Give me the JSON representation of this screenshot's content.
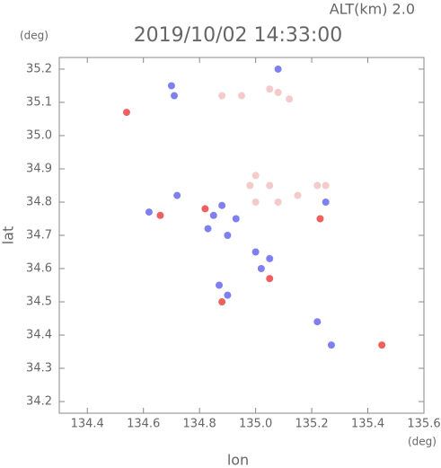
{
  "chart_data": {
    "type": "scatter",
    "title": "2019/10/02 14:33:00",
    "subtitle": "ALT(km)  2.0",
    "x_label": "lon",
    "y_label": "lat",
    "x_unit": "(deg)",
    "y_unit": "(deg)",
    "xlim": [
      134.3,
      135.6
    ],
    "xticks": [
      134.4,
      134.6,
      134.8,
      {
        "value": 135,
        "label": "135.0"
      },
      135.2,
      135.4,
      135.6
    ],
    "ylim": [
      34.165,
      35.235
    ],
    "yticks": [
      34.2,
      34.3,
      34.4,
      34.5,
      34.6,
      34.7,
      34.8,
      34.9,
      {
        "value": 35,
        "label": "35.0"
      },
      35.1,
      35.2
    ],
    "series": [
      {
        "color": "#f5caca",
        "x": [
          135.08,
          135.12,
          134.88,
          134.95,
          135.05,
          135.0,
          135.0,
          135.08,
          135.15,
          135.22,
          135.25,
          135.05,
          134.98
        ],
        "values": [
          35.13,
          35.11,
          35.12,
          35.12,
          35.14,
          34.88,
          34.8,
          34.8,
          34.82,
          34.85,
          34.85,
          34.85,
          34.85
        ]
      },
      {
        "color": "#7f7ff0",
        "x": [
          134.7,
          134.71,
          134.85,
          134.83,
          134.9,
          134.93,
          135.0,
          135.05,
          134.72,
          134.62,
          134.9,
          135.27,
          135.22,
          135.02,
          134.87,
          135.08,
          134.88,
          135.25
        ],
        "values": [
          35.15,
          35.12,
          34.76,
          34.72,
          34.7,
          34.75,
          34.65,
          34.63,
          34.82,
          34.77,
          34.52,
          34.37,
          34.44,
          34.6,
          34.55,
          35.2,
          34.79,
          34.8
        ]
      },
      {
        "color": "#ef6060",
        "x": [
          134.54,
          134.66,
          134.88,
          135.45,
          135.05,
          134.82,
          135.23
        ],
        "values": [
          35.07,
          34.76,
          34.5,
          34.37,
          34.57,
          34.78,
          34.75
        ]
      }
    ]
  }
}
